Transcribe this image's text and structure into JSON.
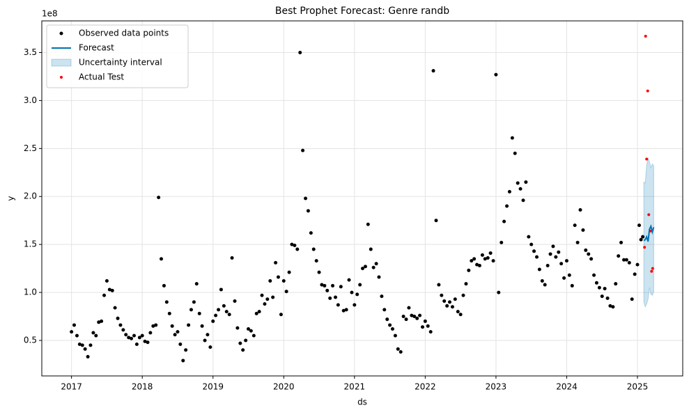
{
  "chart_data": {
    "type": "line",
    "title": "Best Prophet Forecast: Genre randb",
    "x_label": "ds",
    "y_label": "y",
    "y_offset_label": "1e8",
    "xlim": [
      2016.58,
      2025.64
    ],
    "xticks": [
      2017,
      2018,
      2019,
      2020,
      2021,
      2022,
      2023,
      2024,
      2025
    ],
    "ylim": [
      0.13,
      3.83
    ],
    "yticks": [
      0.5,
      {
        "value": 1,
        "label": "1.0"
      },
      1.5,
      {
        "value": 2,
        "label": "2.0"
      },
      2.5,
      {
        "value": 3,
        "label": "3.0"
      },
      3.5
    ],
    "grid": true,
    "legend": "upper-left",
    "series": [
      {
        "name": "Observed data points",
        "kind": "scatter",
        "color": "#000000",
        "x": [
          2017,
          2017.038,
          2017.077,
          2017.115,
          2017.154,
          2017.192,
          2017.231,
          2017.269,
          2017.308,
          2017.346,
          2017.385,
          2017.423,
          2017.462,
          2017.5,
          2017.538,
          2017.577,
          2017.615,
          2017.654,
          2017.692,
          2017.731,
          2017.769,
          2017.808,
          2017.846,
          2017.885,
          2017.923,
          2017.962,
          2018,
          2018.038,
          2018.077,
          2018.115,
          2018.154,
          2018.192,
          2018.231,
          2018.269,
          2018.308,
          2018.346,
          2018.385,
          2018.423,
          2018.462,
          2018.5,
          2018.538,
          2018.577,
          2018.615,
          2018.654,
          2018.692,
          2018.731,
          2018.769,
          2018.808,
          2018.846,
          2018.885,
          2018.923,
          2018.962,
          2019,
          2019.038,
          2019.077,
          2019.115,
          2019.154,
          2019.192,
          2019.231,
          2019.269,
          2019.308,
          2019.346,
          2019.385,
          2019.423,
          2019.462,
          2019.5,
          2019.538,
          2019.577,
          2019.615,
          2019.654,
          2019.692,
          2019.731,
          2019.769,
          2019.808,
          2019.846,
          2019.885,
          2019.923,
          2019.962,
          2020,
          2020.038,
          2020.077,
          2020.115,
          2020.154,
          2020.192,
          2020.231,
          2020.269,
          2020.308,
          2020.346,
          2020.385,
          2020.423,
          2020.462,
          2020.5,
          2020.538,
          2020.577,
          2020.615,
          2020.654,
          2020.692,
          2020.731,
          2020.769,
          2020.808,
          2020.846,
          2020.885,
          2020.923,
          2020.962,
          2021,
          2021.038,
          2021.077,
          2021.115,
          2021.154,
          2021.192,
          2021.231,
          2021.269,
          2021.308,
          2021.346,
          2021.385,
          2021.423,
          2021.462,
          2021.5,
          2021.538,
          2021.577,
          2021.615,
          2021.654,
          2021.692,
          2021.731,
          2021.769,
          2021.808,
          2021.846,
          2021.885,
          2021.923,
          2021.962,
          2022,
          2022.038,
          2022.077,
          2022.115,
          2022.154,
          2022.192,
          2022.231,
          2022.269,
          2022.308,
          2022.346,
          2022.385,
          2022.423,
          2022.462,
          2022.5,
          2022.538,
          2022.577,
          2022.615,
          2022.654,
          2022.692,
          2022.731,
          2022.769,
          2022.808,
          2022.846,
          2022.885,
          2022.923,
          2022.962,
          2023,
          2023.038,
          2023.077,
          2023.115,
          2023.154,
          2023.192,
          2023.231,
          2023.269,
          2023.308,
          2023.346,
          2023.385,
          2023.423,
          2023.462,
          2023.5,
          2023.538,
          2023.577,
          2023.615,
          2023.654,
          2023.692,
          2023.731,
          2023.769,
          2023.808,
          2023.846,
          2023.885,
          2023.923,
          2023.962,
          2024,
          2024.038,
          2024.077,
          2024.115,
          2024.154,
          2024.192,
          2024.231,
          2024.269,
          2024.308,
          2024.346,
          2024.385,
          2024.423,
          2024.462,
          2024.5,
          2024.538,
          2024.577,
          2024.615,
          2024.654,
          2024.692,
          2024.731,
          2024.769,
          2024.808,
          2024.846,
          2024.885,
          2024.923,
          2024.962,
          2025,
          2025.025,
          2025.05,
          2025.075
        ],
        "values": [
          0.59,
          0.66,
          0.55,
          0.46,
          0.45,
          0.41,
          0.33,
          0.45,
          0.58,
          0.55,
          0.69,
          0.7,
          0.97,
          1.12,
          1.03,
          1.02,
          0.84,
          0.73,
          0.66,
          0.61,
          0.56,
          0.53,
          0.52,
          0.55,
          0.46,
          0.53,
          0.55,
          0.49,
          0.48,
          0.58,
          0.65,
          0.66,
          1.99,
          1.35,
          1.07,
          0.9,
          0.78,
          0.65,
          0.56,
          0.59,
          0.46,
          0.29,
          0.4,
          0.66,
          0.82,
          0.9,
          1.09,
          0.78,
          0.65,
          0.5,
          0.56,
          0.43,
          0.7,
          0.76,
          0.82,
          1.03,
          0.86,
          0.8,
          0.77,
          1.36,
          0.91,
          0.63,
          0.47,
          0.4,
          0.5,
          0.62,
          0.6,
          0.55,
          0.78,
          0.8,
          0.97,
          0.88,
          0.93,
          1.12,
          0.95,
          1.31,
          1.16,
          0.77,
          1.12,
          1.01,
          1.21,
          1.5,
          1.49,
          1.45,
          3.5,
          2.48,
          1.98,
          1.85,
          1.62,
          1.45,
          1.33,
          1.21,
          1.08,
          1.07,
          1.02,
          0.94,
          1.07,
          0.95,
          0.87,
          1.06,
          0.81,
          0.82,
          1.13,
          1.0,
          0.87,
          0.98,
          1.08,
          1.25,
          1.27,
          1.71,
          1.45,
          1.26,
          1.3,
          1.16,
          0.96,
          0.82,
          0.72,
          0.66,
          0.62,
          0.55,
          0.41,
          0.38,
          0.75,
          0.72,
          0.84,
          0.76,
          0.75,
          0.73,
          0.76,
          0.64,
          0.7,
          0.65,
          0.59,
          3.31,
          1.75,
          1.08,
          0.97,
          0.91,
          0.86,
          0.9,
          0.85,
          0.93,
          0.8,
          0.77,
          0.97,
          1.09,
          1.23,
          1.33,
          1.35,
          1.29,
          1.28,
          1.39,
          1.35,
          1.36,
          1.41,
          1.33,
          3.27,
          1.0,
          1.52,
          1.74,
          1.9,
          2.05,
          2.61,
          2.45,
          2.14,
          2.08,
          1.96,
          2.15,
          1.58,
          1.5,
          1.43,
          1.37,
          1.24,
          1.12,
          1.08,
          1.28,
          1.4,
          1.48,
          1.37,
          1.42,
          1.3,
          1.15,
          1.33,
          1.18,
          1.07,
          1.7,
          1.52,
          1.86,
          1.65,
          1.44,
          1.4,
          1.35,
          1.18,
          1.1,
          1.05,
          0.96,
          1.04,
          0.94,
          0.86,
          0.85,
          1.09,
          1.38,
          1.52,
          1.34,
          1.34,
          1.31,
          0.93,
          1.19,
          1.29,
          1.7,
          1.55,
          1.58
        ]
      },
      {
        "name": "Forecast",
        "kind": "line",
        "color": "#0072B2",
        "x": [
          2025.09,
          2025.11,
          2025.13,
          2025.15,
          2025.17,
          2025.19,
          2025.21,
          2025.23
        ],
        "values": [
          1.54,
          1.55,
          1.58,
          1.53,
          1.66,
          1.69,
          1.63,
          1.68
        ]
      },
      {
        "name": "Uncertainty interval",
        "kind": "band",
        "color": "#0072B2",
        "x": [
          2025.09,
          2025.11,
          2025.13,
          2025.15,
          2025.17,
          2025.19,
          2025.21,
          2025.23
        ],
        "upper": [
          2.15,
          2.14,
          2.33,
          2.4,
          2.36,
          2.3,
          2.34,
          2.32
        ],
        "lower": [
          0.9,
          0.85,
          0.88,
          0.93,
          1.05,
          0.98,
          0.97,
          1.01
        ]
      },
      {
        "name": "Actual Test",
        "kind": "scatter",
        "color": "#ff0000",
        "x": [
          2025.1,
          2025.115,
          2025.13,
          2025.145,
          2025.16,
          2025.18,
          2025.2,
          2025.215
        ],
        "values": [
          1.47,
          3.67,
          2.39,
          3.1,
          1.81,
          1.64,
          1.22,
          1.25
        ]
      }
    ]
  }
}
